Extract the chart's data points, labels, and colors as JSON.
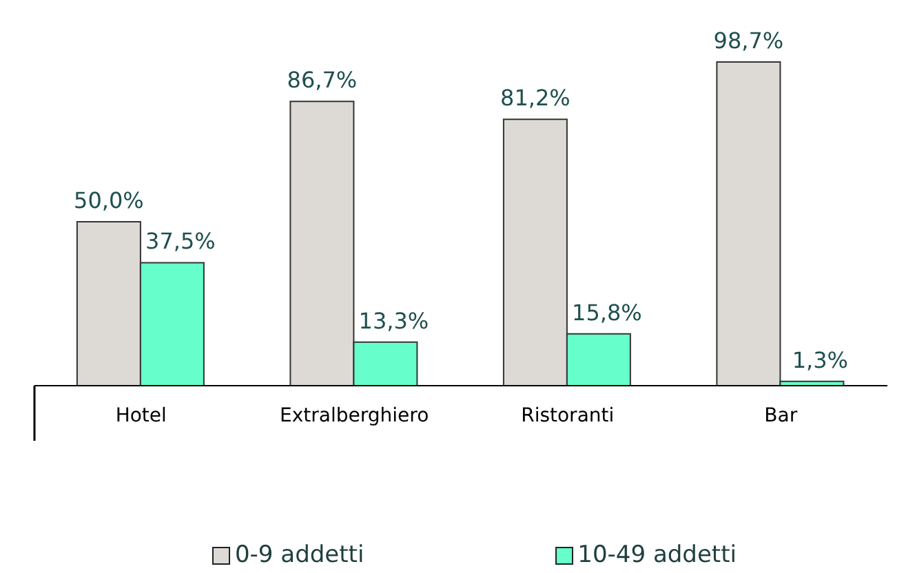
{
  "chart_data": {
    "type": "bar",
    "categories": [
      "Hotel",
      "Extralberghiero",
      "Ristoranti",
      "Bar"
    ],
    "series": [
      {
        "name": "0-9 addetti",
        "color": "#dddad5",
        "values": [
          50.0,
          86.7,
          81.2,
          98.7
        ],
        "value_labels": [
          "50,0%",
          "86,7%",
          "81,2%",
          "98,7%"
        ]
      },
      {
        "name": "10-49 addetti",
        "color": "#66ffcc",
        "values": [
          37.5,
          13.3,
          15.8,
          1.3
        ],
        "value_labels": [
          "37,5%",
          "13,3%",
          "15,8%",
          "1,3%"
        ]
      }
    ],
    "legend": "bottom",
    "grid": false
  }
}
